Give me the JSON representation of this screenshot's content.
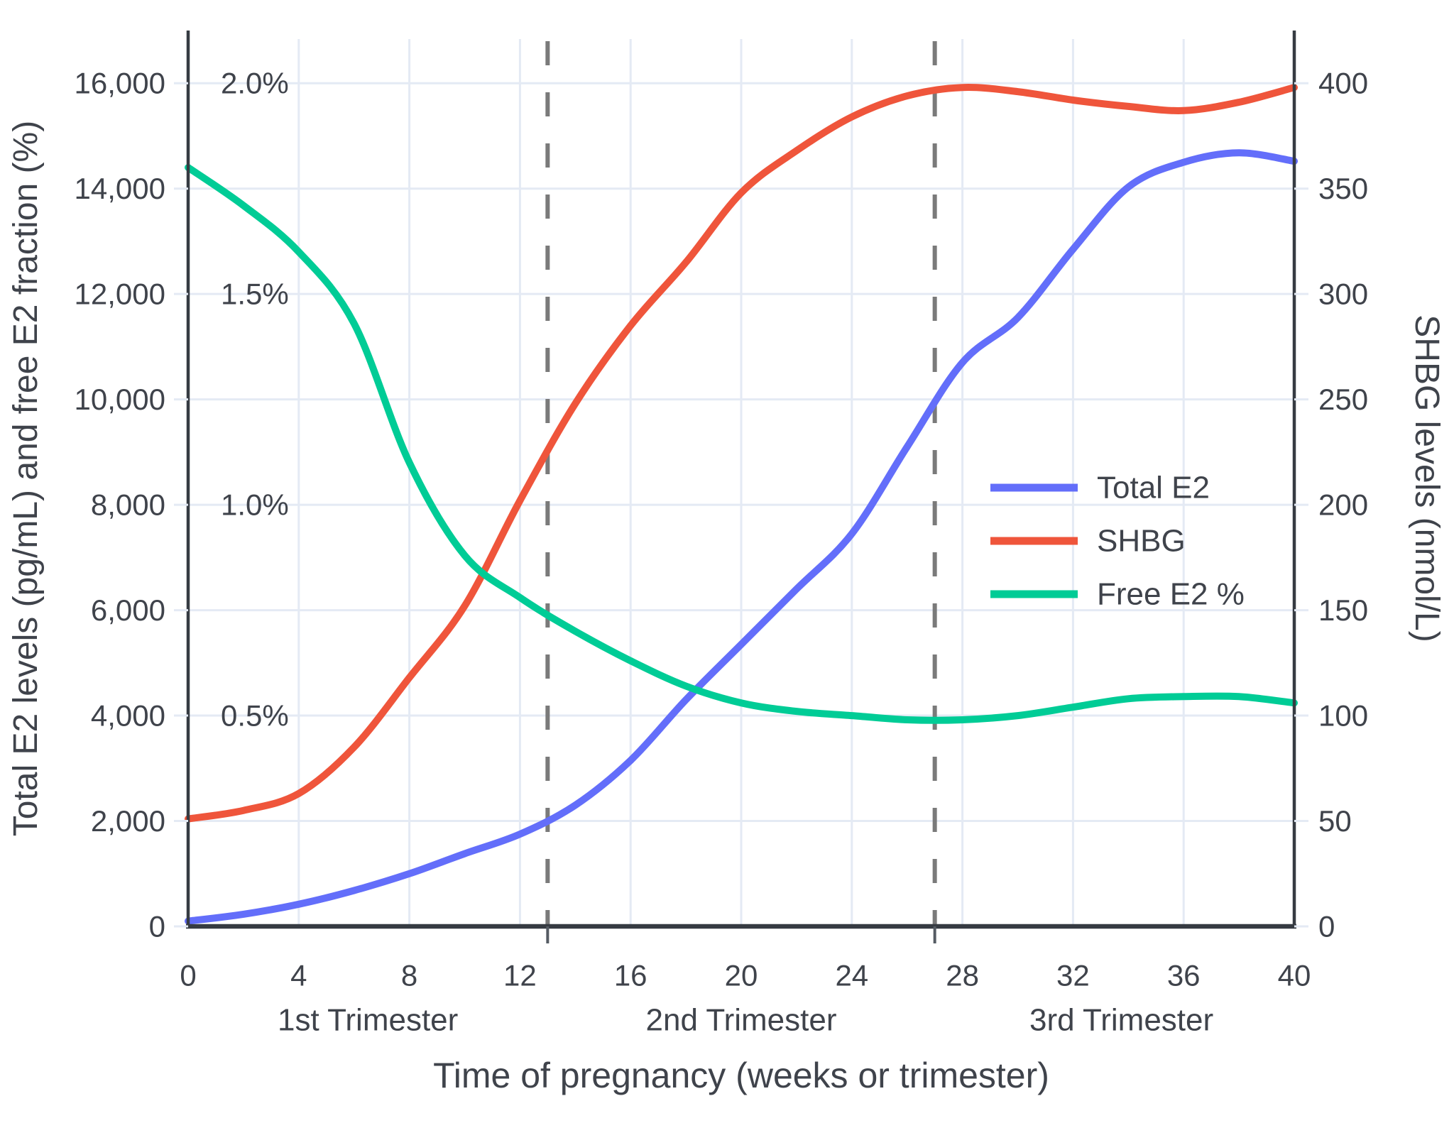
{
  "chart_data": {
    "type": "line",
    "title": "",
    "xlabel": "Time of pregnancy (weeks or trimester)",
    "ylabel_left": "Total E2 levels (pg/mL) and free E2 fraction (%)",
    "ylabel_right": "SHBG levels (nmol/L)",
    "xlim": [
      0,
      40
    ],
    "ylim_left": [
      0,
      17000
    ],
    "ylim_right": [
      0,
      425
    ],
    "grid": true,
    "legend_position": "inside-right",
    "x_ticks": [
      {
        "value": 0,
        "label": "0"
      },
      {
        "value": 4,
        "label": "4"
      },
      {
        "value": 8,
        "label": "8"
      },
      {
        "value": 12,
        "label": "12"
      },
      {
        "value": 16,
        "label": "16"
      },
      {
        "value": 20,
        "label": "20"
      },
      {
        "value": 24,
        "label": "24"
      },
      {
        "value": 28,
        "label": "28"
      },
      {
        "value": 32,
        "label": "32"
      },
      {
        "value": 36,
        "label": "36"
      },
      {
        "value": 40,
        "label": "40"
      }
    ],
    "y_ticks_left": [
      {
        "value": 0,
        "label": "0"
      },
      {
        "value": 2000,
        "label": "2,000"
      },
      {
        "value": 4000,
        "label": "4,000"
      },
      {
        "value": 6000,
        "label": "6,000"
      },
      {
        "value": 8000,
        "label": "8,000"
      },
      {
        "value": 10000,
        "label": "10,000"
      },
      {
        "value": 12000,
        "label": "12,000"
      },
      {
        "value": 14000,
        "label": "14,000"
      },
      {
        "value": 16000,
        "label": "16,000"
      }
    ],
    "y_ticks_right": [
      {
        "value": 0,
        "label": "0"
      },
      {
        "value": 50,
        "label": "50"
      },
      {
        "value": 100,
        "label": "100"
      },
      {
        "value": 150,
        "label": "150"
      },
      {
        "value": 200,
        "label": "200"
      },
      {
        "value": 250,
        "label": "250"
      },
      {
        "value": 300,
        "label": "300"
      },
      {
        "value": 350,
        "label": "350"
      },
      {
        "value": 400,
        "label": "400"
      }
    ],
    "free_e2_axis_labels": [
      {
        "percent": 0.5,
        "label": "0.5%"
      },
      {
        "percent": 1.0,
        "label": "1.0%"
      },
      {
        "percent": 1.5,
        "label": "1.5%"
      },
      {
        "percent": 2.0,
        "label": "2.0%"
      }
    ],
    "percent_to_left_axis_scale": 8000,
    "trimester_dividers_weeks": [
      13,
      27
    ],
    "trimester_labels": [
      {
        "label": "1st Trimester",
        "center_week": 6.5
      },
      {
        "label": "2nd Trimester",
        "center_week": 20
      },
      {
        "label": "3rd Trimester",
        "center_week": 33.75
      }
    ],
    "x_weeks": [
      0,
      2,
      4,
      6,
      8,
      10,
      12,
      14,
      16,
      18,
      20,
      22,
      24,
      26,
      28,
      30,
      32,
      34,
      36,
      38,
      40
    ],
    "series": [
      {
        "name": "Total E2",
        "axis": "left",
        "unit": "pg/mL",
        "color": "#636EFA",
        "values": [
          100,
          230,
          420,
          680,
          1000,
          1380,
          1750,
          2300,
          3150,
          4300,
          5350,
          6400,
          7450,
          9100,
          10700,
          11550,
          12850,
          14030,
          14500,
          14680,
          14520
        ]
      },
      {
        "name": "SHBG",
        "axis": "right",
        "unit": "nmol/L",
        "color": "#EF553B",
        "values": [
          51,
          55,
          63,
          85,
          118,
          152,
          202,
          248,
          285,
          315,
          348,
          368,
          384,
          394,
          398,
          396,
          392,
          389,
          387,
          391,
          398
        ]
      },
      {
        "name": "Free E2 %",
        "axis": "percent-left",
        "unit": "%",
        "color": "#00CC96",
        "values": [
          1.8,
          1.71,
          1.6,
          1.43,
          1.1,
          0.88,
          0.78,
          0.7,
          0.63,
          0.57,
          0.53,
          0.51,
          0.5,
          0.49,
          0.49,
          0.5,
          0.52,
          0.54,
          0.545,
          0.545,
          0.53
        ]
      }
    ],
    "legend_items": [
      {
        "label": "Total E2",
        "color": "#636EFA"
      },
      {
        "label": "SHBG",
        "color": "#EF553B"
      },
      {
        "label": "Free E2 %",
        "color": "#00CC96"
      }
    ],
    "colors": {
      "total_e2": "#636EFA",
      "shbg": "#EF553B",
      "free_e2": "#00CC96",
      "grid": "#E4EAF4",
      "axis_line": "#363B42",
      "text": "#3F434B",
      "divider": "#7A7A7A",
      "background": "#FFFFFF"
    }
  }
}
